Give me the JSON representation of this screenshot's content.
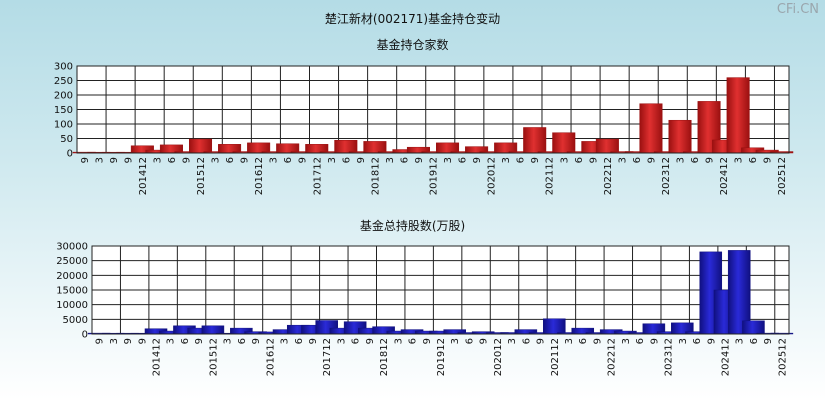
{
  "page": {
    "title": "楚江新材(002171)基金持仓变动",
    "watermark": "CFi.CN"
  },
  "colors": {
    "red": "#e03030",
    "blue": "#2a2ad8"
  },
  "x_labels": [
    "9",
    "3",
    "9",
    "9",
    "201412",
    "3",
    "6",
    "9",
    "201512",
    "3",
    "6",
    "9",
    "201612",
    "3",
    "6",
    "9",
    "201712",
    "3",
    "6",
    "9",
    "201812",
    "3",
    "6",
    "9",
    "201912",
    "3",
    "6",
    "9",
    "202012",
    "3",
    "6",
    "9",
    "202112",
    "3",
    "6",
    "9",
    "202212",
    "3",
    "6",
    "9",
    "202312",
    "3",
    "6",
    "9",
    "202412",
    "3",
    "6",
    "9",
    "202512"
  ],
  "chart_data": [
    {
      "type": "bar",
      "title": "基金持仓家数",
      "ylim": [
        0,
        300
      ],
      "yticks": [
        0,
        50,
        100,
        150,
        200,
        250,
        300
      ],
      "values": [
        3,
        2,
        1,
        1,
        25,
        10,
        28,
        5,
        48,
        5,
        30,
        5,
        35,
        5,
        32,
        5,
        30,
        5,
        44,
        5,
        40,
        5,
        12,
        20,
        5,
        35,
        5,
        22,
        5,
        35,
        5,
        88,
        5,
        70,
        5,
        40,
        48,
        5,
        5,
        170,
        5,
        113,
        5,
        178,
        45,
        260,
        18,
        10,
        5
      ]
    },
    {
      "type": "bar",
      "title": "基金总持股数(万股)",
      "ylim": [
        0,
        30000
      ],
      "yticks": [
        0,
        5000,
        10000,
        15000,
        20000,
        25000,
        30000
      ],
      "values": [
        300,
        100,
        50,
        50,
        1800,
        1000,
        2800,
        2000,
        2800,
        200,
        2000,
        800,
        700,
        1500,
        3000,
        3000,
        4600,
        2000,
        4200,
        2000,
        2500,
        1000,
        1500,
        1000,
        1000,
        1500,
        500,
        800,
        500,
        500,
        1500,
        500,
        5200,
        500,
        2000,
        500,
        1500,
        1000,
        500,
        3500,
        800,
        3800,
        800,
        28000,
        15000,
        28500,
        4500,
        300,
        300
      ]
    }
  ]
}
